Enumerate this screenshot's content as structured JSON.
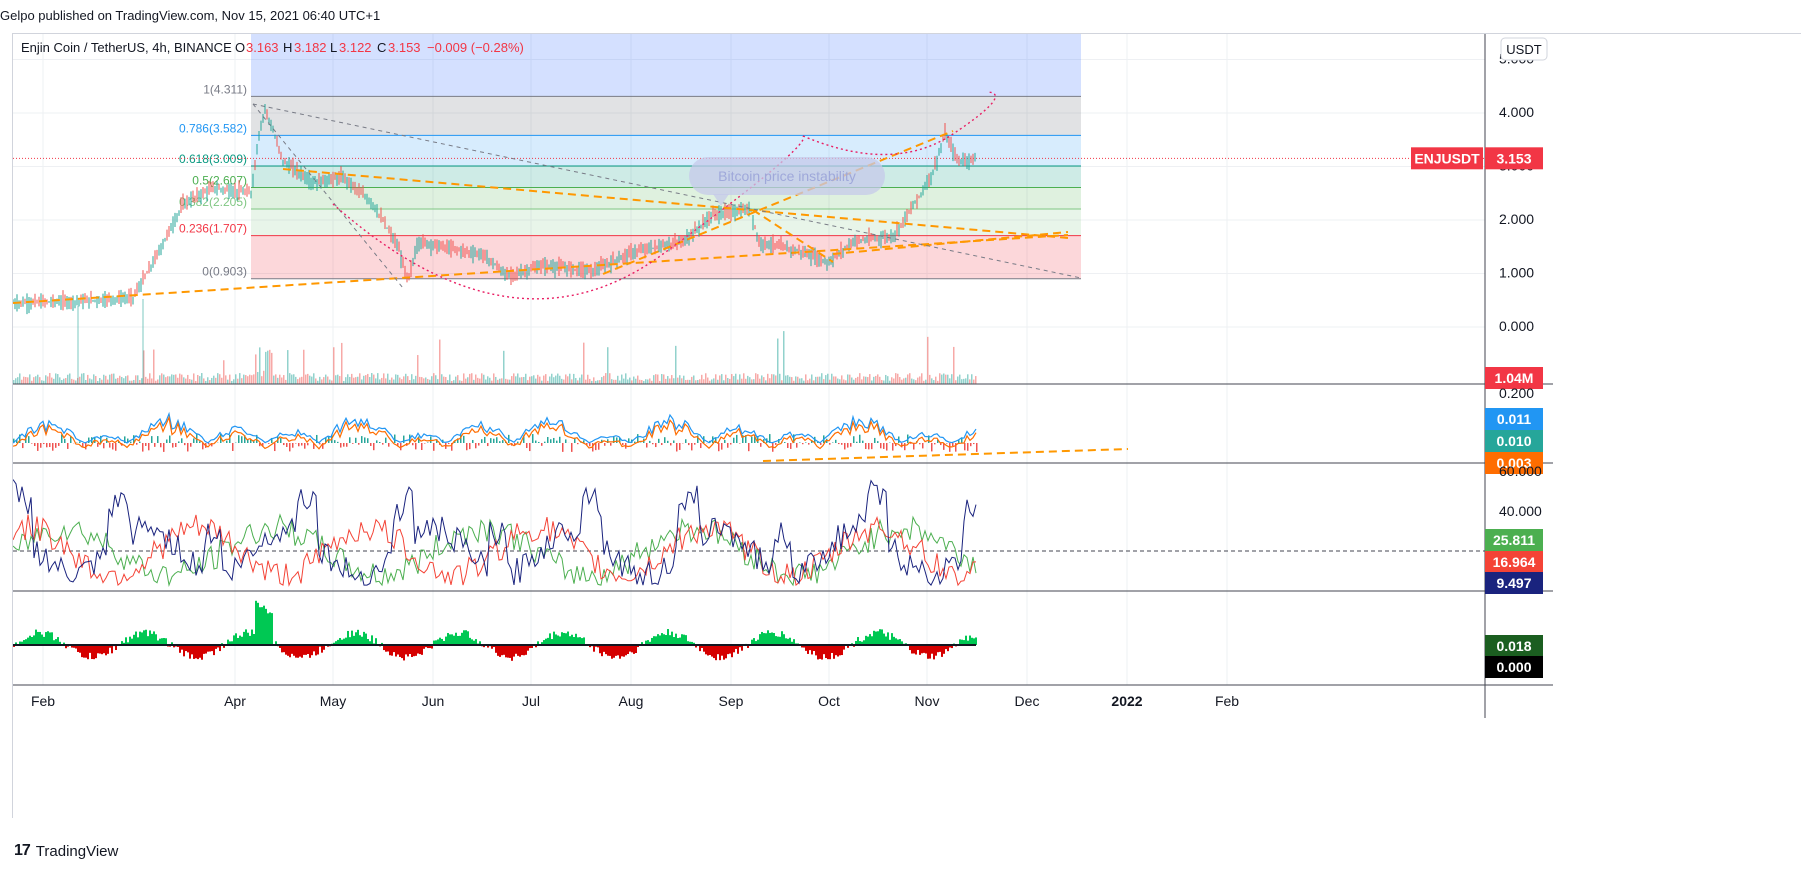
{
  "header": {
    "publisher_line": "Gelpo published on TradingView.com, Nov 15, 2021 06:40 UTC+1"
  },
  "legend": {
    "symbol": "Enjin Coin / TetherUS, 4h, BINANCE",
    "o_label": "O",
    "o_value": "3.163",
    "h_label": "H",
    "h_value": "3.182",
    "l_label": "L",
    "l_value": "3.122",
    "c_label": "C",
    "c_value": "3.153",
    "change": "−0.009 (−0.28%)"
  },
  "currency_button": "USDT",
  "price_axis": {
    "ticks": [
      "5.000",
      "4.000",
      "3.000",
      "2.000",
      "1.000",
      "0.000"
    ],
    "symbol_tag": "ENJUSDT",
    "last_price": "3.153",
    "volume_tag": "1.04M"
  },
  "fib_levels": [
    {
      "label": "1(4.311)",
      "value": 4.311,
      "color": "#787b86"
    },
    {
      "label": "0.786(3.582)",
      "value": 3.582,
      "color": "#2196f3"
    },
    {
      "label": "0.618(3.009)",
      "value": 3.009,
      "color": "#089981"
    },
    {
      "label": "0.5(2.607)",
      "value": 2.607,
      "color": "#4caf50"
    },
    {
      "label": "0.382(2.205)",
      "value": 2.205,
      "color": "#81c784"
    },
    {
      "label": "0.236(1.707)",
      "value": 1.707,
      "color": "#f23645"
    },
    {
      "label": "0(0.903)",
      "value": 0.903,
      "color": "#787b86"
    }
  ],
  "annotation": {
    "text": "Bitcoin price instability"
  },
  "macd_pane": {
    "ticks": [
      "0.200"
    ],
    "tags": [
      "0.011",
      "0.010",
      "0.003"
    ]
  },
  "dmi_pane": {
    "ticks": [
      "60.000",
      "40.000"
    ],
    "tags": [
      "25.811",
      "16.964",
      "9.497"
    ]
  },
  "osc_pane": {
    "tags": [
      "0.018",
      "0.000"
    ]
  },
  "time_axis": [
    "Feb",
    "Apr",
    "May",
    "Jun",
    "Jul",
    "Aug",
    "Sep",
    "Oct",
    "Nov",
    "Dec",
    "2022",
    "Feb"
  ],
  "footer": {
    "brand": "TradingView",
    "logo": "17"
  },
  "colors": {
    "up": "#26a69a",
    "down": "#ef5350",
    "trend": "#ff9800",
    "curve": "#e91e63",
    "price_tag": "#f23645",
    "macd_line": "#2196f3",
    "signal_line": "#ff6d00",
    "dmi_plus": "#4caf50",
    "dmi_minus": "#f44336",
    "adx": "#1a237e"
  }
}
